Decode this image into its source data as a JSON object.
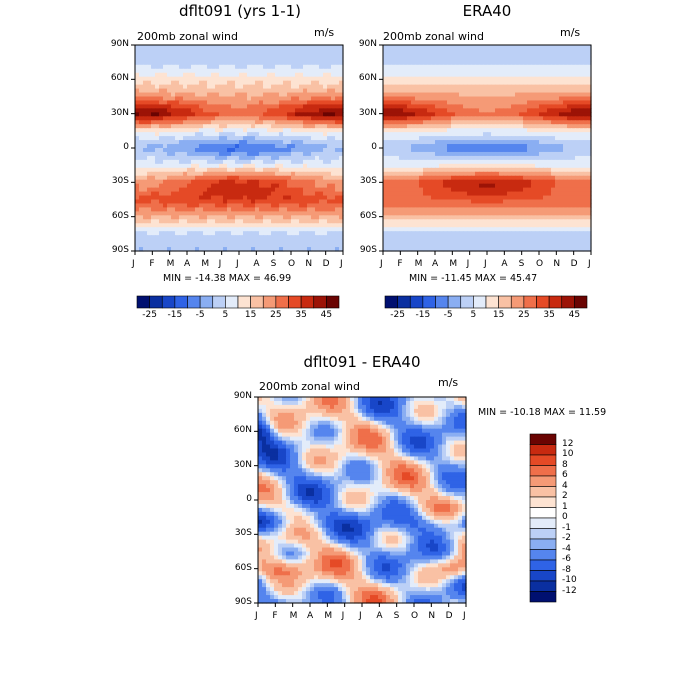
{
  "colors": {
    "palette": [
      "#001070",
      "#0a2fa0",
      "#1846c8",
      "#2f63e6",
      "#5585ee",
      "#8aaef2",
      "#bcd0f6",
      "#e3ecfa",
      "#fde3d2",
      "#f9c1a4",
      "#f59a76",
      "#ef6f4a",
      "#e54a26",
      "#c82a10",
      "#9c1306",
      "#6a0402"
    ]
  },
  "chart_data": [
    {
      "type": "heatmap",
      "title": "dflt091 (yrs 1-1)",
      "subtitle": "200mb zonal wind",
      "units": "m/s",
      "stats": "MIN = -14.38 MAX =  46.99",
      "x_ticks": [
        "J",
        "F",
        "M",
        "A",
        "M",
        "J",
        "J",
        "A",
        "S",
        "O",
        "N",
        "D",
        "J"
      ],
      "y_ticks": [
        "90N",
        "60N",
        "30N",
        "0",
        "30S",
        "60S",
        "90S"
      ],
      "legend_labels": [
        "-25",
        "-15",
        "-5",
        "5",
        "15",
        "25",
        "35",
        "45"
      ],
      "lat_profile": [
        [
          90,
          2
        ],
        [
          75,
          3
        ],
        [
          60,
          12
        ],
        [
          45,
          22
        ],
        [
          30,
          38
        ],
        [
          15,
          10
        ],
        [
          0,
          -6
        ],
        [
          -15,
          8
        ],
        [
          -30,
          30
        ],
        [
          -45,
          34
        ],
        [
          -60,
          20
        ],
        [
          -75,
          4
        ],
        [
          -90,
          1
        ]
      ],
      "peak": 46.99
    },
    {
      "type": "heatmap",
      "title": "ERA40",
      "subtitle": "200mb zonal wind",
      "units": "m/s",
      "stats": "MIN = -11.45 MAX =  45.47",
      "x_ticks": [
        "J",
        "F",
        "M",
        "A",
        "M",
        "J",
        "J",
        "A",
        "S",
        "O",
        "N",
        "D",
        "J"
      ],
      "y_ticks": [
        "90N",
        "60N",
        "30N",
        "0",
        "30S",
        "60S",
        "90S"
      ],
      "legend_labels": [
        "-25",
        "-15",
        "-5",
        "5",
        "15",
        "25",
        "35",
        "45"
      ],
      "lat_profile": [
        [
          90,
          0
        ],
        [
          75,
          4
        ],
        [
          60,
          12
        ],
        [
          45,
          22
        ],
        [
          30,
          36
        ],
        [
          15,
          10
        ],
        [
          0,
          -5
        ],
        [
          -15,
          9
        ],
        [
          -30,
          34
        ],
        [
          -45,
          30
        ],
        [
          -60,
          18
        ],
        [
          -75,
          3
        ],
        [
          -90,
          0
        ]
      ],
      "peak": 45.47
    },
    {
      "type": "heatmap",
      "title": "dflt091 - ERA40",
      "subtitle": "200mb zonal wind",
      "units": "m/s",
      "stats": "MIN = -10.18 MAX =  11.59",
      "x_ticks": [
        "J",
        "F",
        "M",
        "A",
        "M",
        "J",
        "J",
        "A",
        "S",
        "O",
        "N",
        "D",
        "J"
      ],
      "y_ticks": [
        "90N",
        "60N",
        "30N",
        "0",
        "30S",
        "60S",
        "90S"
      ],
      "legend_labels": [
        "12",
        "10",
        "8",
        "6",
        "4",
        "2",
        "1",
        "0",
        "-1",
        "-2",
        "-4",
        "-6",
        "-8",
        "-10",
        "-12"
      ],
      "range": [
        -12,
        12
      ]
    }
  ]
}
